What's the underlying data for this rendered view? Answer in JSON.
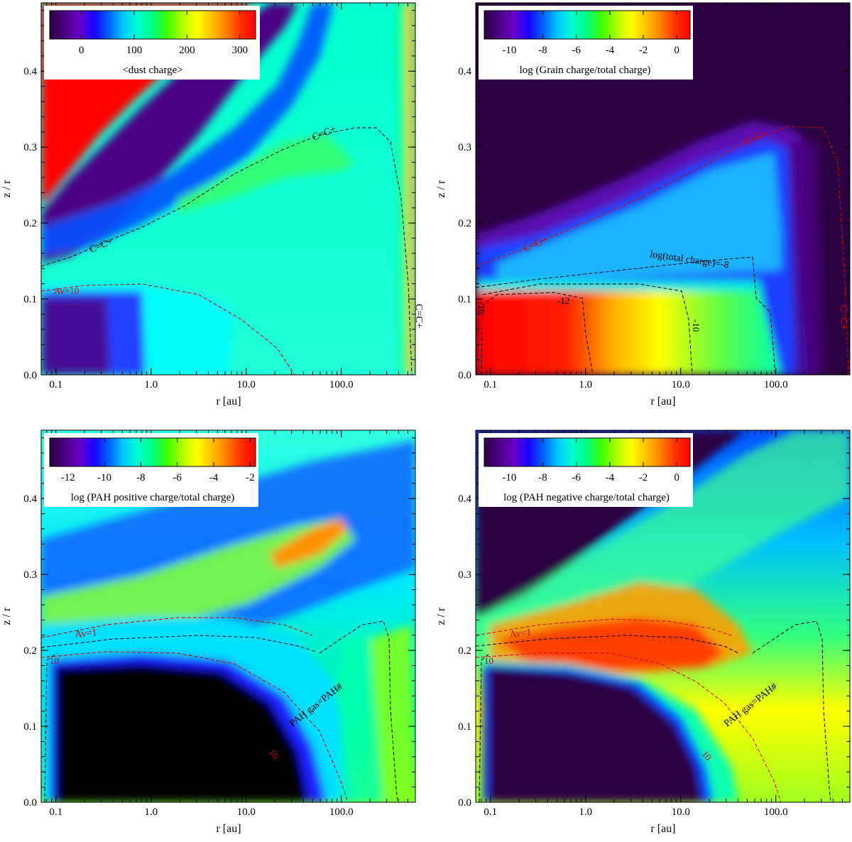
{
  "figure": {
    "colormap": [
      "#2b0040",
      "#4b0082",
      "#6a00c8",
      "#1a00ff",
      "#0060ff",
      "#00c8ff",
      "#00ffd0",
      "#00ff80",
      "#40ff00",
      "#b0ff00",
      "#ffff00",
      "#ffc000",
      "#ff8000",
      "#ff3000",
      "#ff0000"
    ]
  },
  "chart_data": [
    {
      "type": "heatmap",
      "panel": "top-left",
      "xlabel": "r [au]",
      "ylabel": "z / r",
      "xscale": "log",
      "xlim": [
        0.07,
        600
      ],
      "ylim": [
        0,
        0.49
      ],
      "xticks": [
        "0.1",
        "1.0",
        "10.0",
        "100.0"
      ],
      "yticks": [
        "0.0",
        "0.1",
        "0.2",
        "0.3",
        "0.4"
      ],
      "colorbar": {
        "label": "<dust charge>",
        "scale": "linear",
        "range": [
          -60,
          330
        ],
        "ticks": [
          "0",
          "100",
          "200",
          "300"
        ],
        "placement": "top-left"
      },
      "annotations": [
        {
          "text": "C=C+",
          "color": "#000000"
        },
        {
          "text": "C=C+",
          "color": "#000000"
        },
        {
          "text": "Av=10",
          "color": "#cc0000"
        },
        {
          "text": "C=C+",
          "color": "#000000"
        }
      ]
    },
    {
      "type": "heatmap",
      "panel": "top-right",
      "xlabel": "r [au]",
      "ylabel": "z / r",
      "xscale": "log",
      "xlim": [
        0.07,
        600
      ],
      "ylim": [
        0,
        0.49
      ],
      "xticks": [
        "0.1",
        "1.0",
        "10.0",
        "100.0"
      ],
      "yticks": [
        "0.0",
        "0.1",
        "0.2",
        "0.3",
        "0.4"
      ],
      "colorbar": {
        "label": "log (Grain charge/total charge)",
        "scale": "log",
        "range": [
          -11.5,
          0.8
        ],
        "ticks": [
          "-10",
          "-8",
          "-6",
          "-4",
          "-2",
          "0"
        ],
        "placement": "top-right"
      },
      "annotations": [
        {
          "text": "C=C+",
          "color": "#cc0000"
        },
        {
          "text": "C=C+",
          "color": "#cc0000"
        },
        {
          "text": "log(total charge)=-8",
          "color": "#000000"
        },
        {
          "text": "-12",
          "color": "#000000"
        },
        {
          "text": "-10",
          "color": "#000000"
        },
        {
          "text": "-10",
          "color": "#000000"
        },
        {
          "text": "C=C+",
          "color": "#cc0000"
        }
      ]
    },
    {
      "type": "heatmap",
      "panel": "bottom-left",
      "xlabel": "r [au]",
      "ylabel": "z / r",
      "xscale": "log",
      "xlim": [
        0.07,
        600
      ],
      "ylim": [
        0,
        0.49
      ],
      "xticks": [
        "0.1",
        "1.0",
        "10.0",
        "100.0"
      ],
      "yticks": [
        "0.0",
        "0.1",
        "0.2",
        "0.3",
        "0.4"
      ],
      "colorbar": {
        "label": "log (PAH positive charge/total charge)",
        "scale": "log",
        "range": [
          -13,
          -1.7
        ],
        "ticks": [
          "-12",
          "-10",
          "-8",
          "-6",
          "-4",
          "-2"
        ],
        "placement": "top-left"
      },
      "annotations": [
        {
          "text": "Av=1",
          "color": "#cc0000"
        },
        {
          "text": "10",
          "color": "#cc0000"
        },
        {
          "text": "10",
          "color": "#cc0000"
        },
        {
          "text": "PAH gas=PAH#",
          "color": "#000000"
        }
      ]
    },
    {
      "type": "heatmap",
      "panel": "bottom-right",
      "xlabel": "r [au]",
      "ylabel": "z / r",
      "xscale": "log",
      "xlim": [
        0.07,
        600
      ],
      "ylim": [
        0,
        0.49
      ],
      "xticks": [
        "0.1",
        "1.0",
        "10.0",
        "100.0"
      ],
      "yticks": [
        "0.0",
        "0.1",
        "0.2",
        "0.3",
        "0.4"
      ],
      "colorbar": {
        "label": "log (PAH negative charge/total charge)",
        "scale": "log",
        "range": [
          -11.5,
          0.8
        ],
        "ticks": [
          "-10",
          "-8",
          "-6",
          "-4",
          "-2",
          "0"
        ],
        "placement": "top-left"
      },
      "annotations": [
        {
          "text": "Av=1",
          "color": "#cc0000"
        },
        {
          "text": "10",
          "color": "#cc0000"
        },
        {
          "text": "10",
          "color": "#cc0000"
        },
        {
          "text": "PAH gas=PAH#",
          "color": "#000000"
        }
      ]
    }
  ]
}
